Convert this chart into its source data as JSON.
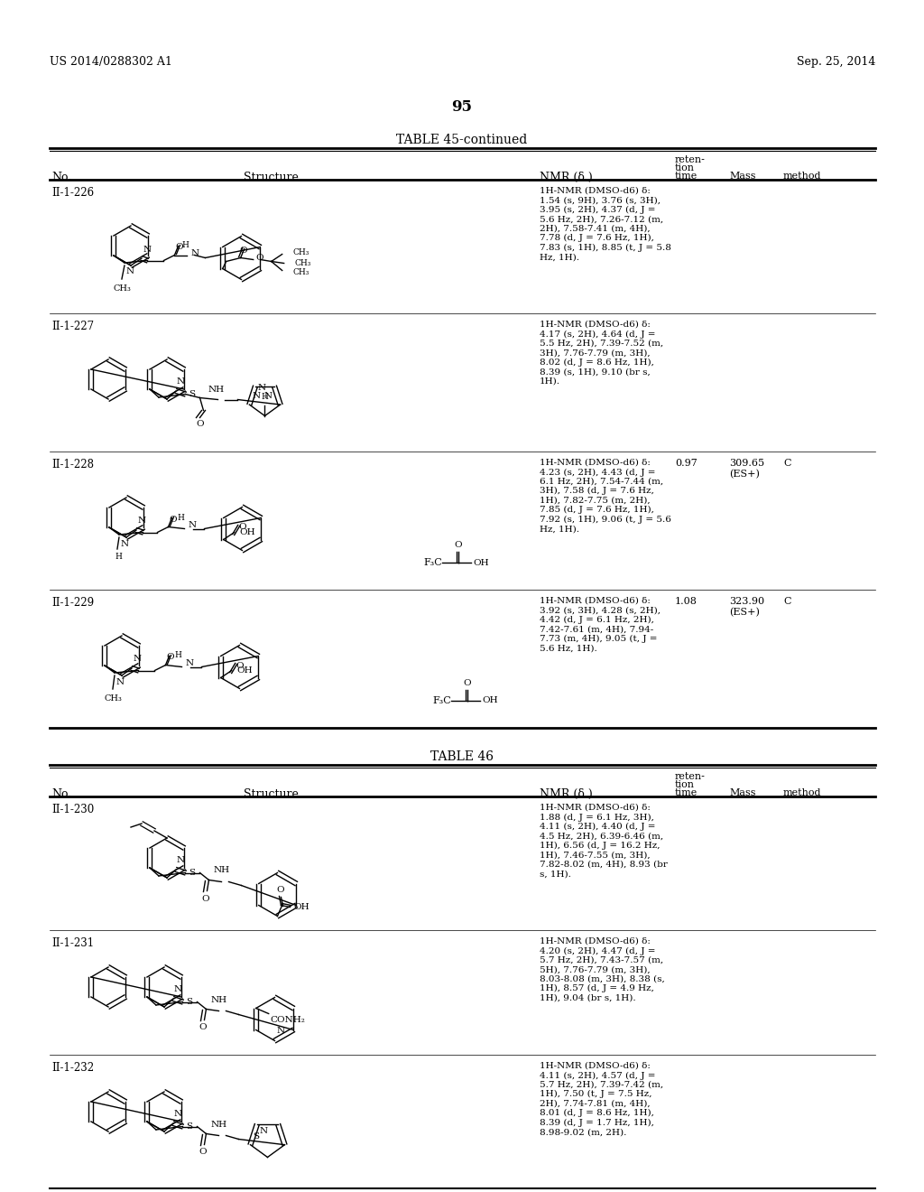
{
  "page_header_left": "US 2014/0288302 A1",
  "page_header_right": "Sep. 25, 2014",
  "page_number": "95",
  "table1_title": "TABLE 45-continued",
  "table2_title": "TABLE 46",
  "rows_table1": [
    {
      "no": "II-1-226",
      "nmr": "1H-NMR (DMSO-d6) δ:\n1.54 (s, 9H), 3.76 (s, 3H),\n3.95 (s, 2H), 4.37 (d, J =\n5.6 Hz, 2H), 7.26-7.12 (m,\n2H), 7.58-7.41 (m, 4H),\n7.78 (d, J = 7.6 Hz, 1H),\n7.83 (s, 1H), 8.85 (t, J = 5.8\nHz, 1H).",
      "ret_time": "",
      "mass": "",
      "method": ""
    },
    {
      "no": "II-1-227",
      "nmr": "1H-NMR (DMSO-d6) δ:\n4.17 (s, 2H), 4.64 (d, J =\n5.5 Hz, 2H), 7.39-7.52 (m,\n3H), 7.76-7.79 (m, 3H),\n8.02 (d, J = 8.6 Hz, 1H),\n8.39 (s, 1H), 9.10 (br s,\n1H).",
      "ret_time": "",
      "mass": "",
      "method": ""
    },
    {
      "no": "II-1-228",
      "nmr": "1H-NMR (DMSO-d6) δ:\n4.23 (s, 2H), 4.43 (d, J =\n6.1 Hz, 2H), 7.54-7.44 (m,\n3H), 7.58 (d, J = 7.6 Hz,\n1H), 7.82-7.75 (m, 2H),\n7.85 (d, J = 7.6 Hz, 1H),\n7.92 (s, 1H), 9.06 (t, J = 5.6\nHz, 1H).",
      "ret_time": "0.97",
      "mass": "309.65\n(ES+)",
      "method": "C"
    },
    {
      "no": "II-1-229",
      "nmr": "1H-NMR (DMSO-d6) δ:\n3.92 (s, 3H), 4.28 (s, 2H),\n4.42 (d, J = 6.1 Hz, 2H),\n7.42-7.61 (m, 4H), 7.94-\n7.73 (m, 4H), 9.05 (t, J =\n5.6 Hz, 1H).",
      "ret_time": "1.08",
      "mass": "323.90\n(ES+)",
      "method": "C"
    }
  ],
  "rows_table2": [
    {
      "no": "II-1-230",
      "nmr": "1H-NMR (DMSO-d6) δ:\n1.88 (d, J = 6.1 Hz, 3H),\n4.11 (s, 2H), 4.40 (d, J =\n4.5 Hz, 2H), 6.39-6.46 (m,\n1H), 6.56 (d, J = 16.2 Hz,\n1H), 7.46-7.55 (m, 3H),\n7.82-8.02 (m, 4H), 8.93 (br\ns, 1H).",
      "ret_time": "",
      "mass": "",
      "method": ""
    },
    {
      "no": "II-1-231",
      "nmr": "1H-NMR (DMSO-d6) δ:\n4.20 (s, 2H), 4.47 (d, J =\n5.7 Hz, 2H), 7.43-7.57 (m,\n5H), 7.76-7.79 (m, 3H),\n8.03-8.08 (m, 3H), 8.38 (s,\n1H), 8.57 (d, J = 4.9 Hz,\n1H), 9.04 (br s, 1H).",
      "ret_time": "",
      "mass": "",
      "method": ""
    },
    {
      "no": "II-1-232",
      "nmr": "1H-NMR (DMSO-d6) δ:\n4.11 (s, 2H), 4.57 (d, J =\n5.7 Hz, 2H), 7.39-7.42 (m,\n1H), 7.50 (t, J = 7.5 Hz,\n2H), 7.74-7.81 (m, 4H),\n8.01 (d, J = 8.6 Hz, 1H),\n8.39 (d, J = 1.7 Hz, 1H),\n8.98-9.02 (m, 2H).",
      "ret_time": "",
      "mass": "",
      "method": ""
    }
  ]
}
